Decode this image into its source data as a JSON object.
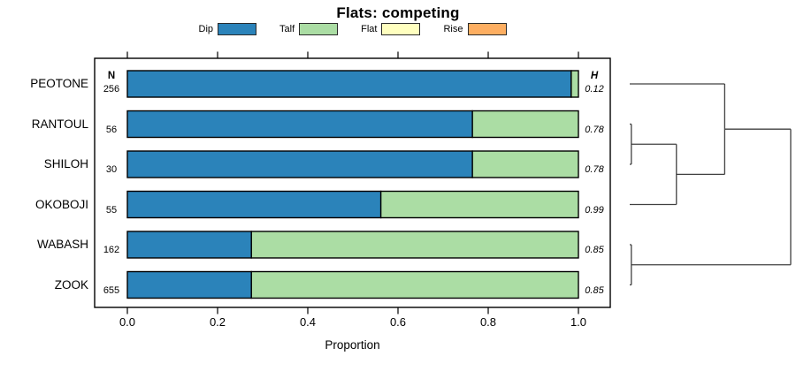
{
  "chart_data": {
    "type": "bar",
    "orientation": "horizontal",
    "stacked": true,
    "title": "Flats: competing",
    "xlabel": "Proportion",
    "x_ticks": [
      "0.0",
      "0.2",
      "0.4",
      "0.6",
      "0.8",
      "1.0"
    ],
    "xlim": [
      0,
      1
    ],
    "grid": false,
    "legend_position": "top-center",
    "n_header": "N",
    "h_header": "H",
    "categories": [
      "PEOTONE",
      "RANTOUL",
      "SHILOH",
      "OKOBOJI",
      "WABASH",
      "ZOOK"
    ],
    "n_values": [
      "256",
      "56",
      "30",
      "55",
      "162",
      "655"
    ],
    "h_values": [
      "0.12",
      "0.78",
      "0.78",
      "0.99",
      "0.85",
      "0.85"
    ],
    "series": [
      {
        "name": "Dip",
        "color": "#2B83BA",
        "values": [
          0.984,
          0.765,
          0.765,
          0.562,
          0.275,
          0.275
        ]
      },
      {
        "name": "Talf",
        "color": "#ABDDA4",
        "values": [
          0.016,
          0.235,
          0.235,
          0.438,
          0.725,
          0.725
        ]
      },
      {
        "name": "Flat",
        "color": "#FFFFBF",
        "values": [
          0,
          0,
          0,
          0,
          0,
          0
        ]
      },
      {
        "name": "Rise",
        "color": "#FDAE61",
        "values": [
          0,
          0,
          0,
          0,
          0,
          0
        ]
      }
    ],
    "dendrogram": {
      "leaves": [
        "PEOTONE",
        "RANTOUL",
        "SHILOH",
        "OKOBOJI",
        "WABASH",
        "ZOOK"
      ],
      "merges": [
        {
          "a": "RANTOUL",
          "b": "SHILOH",
          "height": 0.01
        },
        {
          "a": "@1",
          "b": "OKOBOJI",
          "height": 0.29
        },
        {
          "a": "PEOTONE",
          "b": "@2",
          "height": 0.59
        },
        {
          "a": "WABASH",
          "b": "ZOOK",
          "height": 0.01
        },
        {
          "a": "@3",
          "b": "@4",
          "height": 1.0
        }
      ]
    }
  },
  "colors": {
    "bar_border": "#000000",
    "plot_border": "#000000",
    "axis": "#000000",
    "dendrogram_line": "#404040",
    "text": "#000000"
  }
}
